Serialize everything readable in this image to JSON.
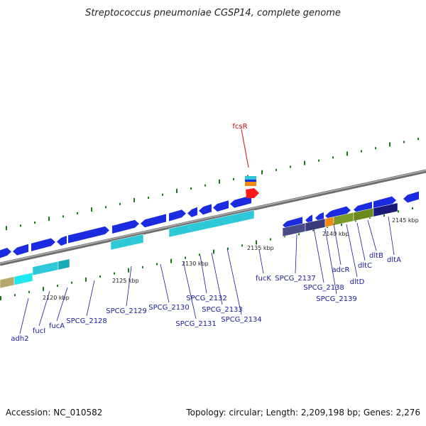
{
  "title": "Streptococcus pneumoniae CGSP14, complete genome",
  "footer": {
    "accession": "Accession: NC_010582",
    "topology": "Topology: circular; Length: 2,209,198 bp; Genes: 2,276"
  },
  "colors": {
    "backbone": "#8a8a8a",
    "gene_forward": "#1a2be0",
    "gene_cyan": "#2ec8d8",
    "highlight": "#ff2020",
    "orange": "#f08a10",
    "gc_tick": "#1a7a1a",
    "label": "#1a1a99",
    "label_red": "#cc1010"
  },
  "scale_labels": [
    "2120 kbp",
    "2125 kbp",
    "2130 kbp",
    "2135 kbp",
    "2140 kbp",
    "2145 kbp"
  ],
  "genes": [
    "adh2",
    "fucI",
    "fucA",
    "SPCG_2128",
    "SPCG_2129",
    "SPCG_2130",
    "SPCG_2131",
    "SPCG_2132",
    "SPCG_2133",
    "SPCG_2134",
    "fucK",
    "SPCG_2137",
    "SPCG_2138",
    "SPCG_2139",
    "adcR",
    "dltD",
    "dltC",
    "dltB",
    "dltA"
  ],
  "highlighted_gene": "fcsR"
}
